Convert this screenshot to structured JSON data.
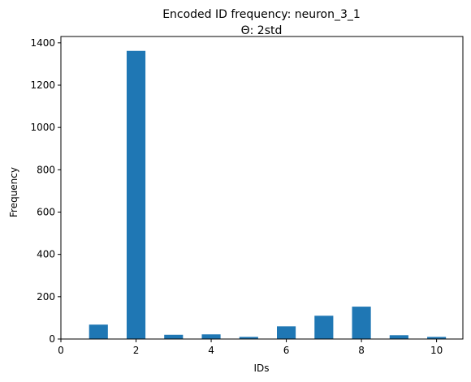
{
  "chart_data": {
    "type": "bar",
    "title": "Encoded ID frequency: neuron_3_1",
    "subtitle": "Θ: 2std",
    "xlabel": "IDs",
    "ylabel": "Frequency",
    "xlim": [
      0,
      10.7
    ],
    "ylim": [
      0,
      1430
    ],
    "xticks": [
      0,
      2,
      4,
      6,
      8,
      10
    ],
    "yticks": [
      0,
      200,
      400,
      600,
      800,
      1000,
      1200,
      1400
    ],
    "bar_width": 0.5,
    "grid": false,
    "color": "#1f77b4",
    "x": [
      1,
      2,
      3,
      4,
      5,
      6,
      7,
      8,
      9,
      10
    ],
    "values": [
      68,
      1362,
      20,
      22,
      10,
      60,
      110,
      153,
      18,
      10
    ]
  }
}
